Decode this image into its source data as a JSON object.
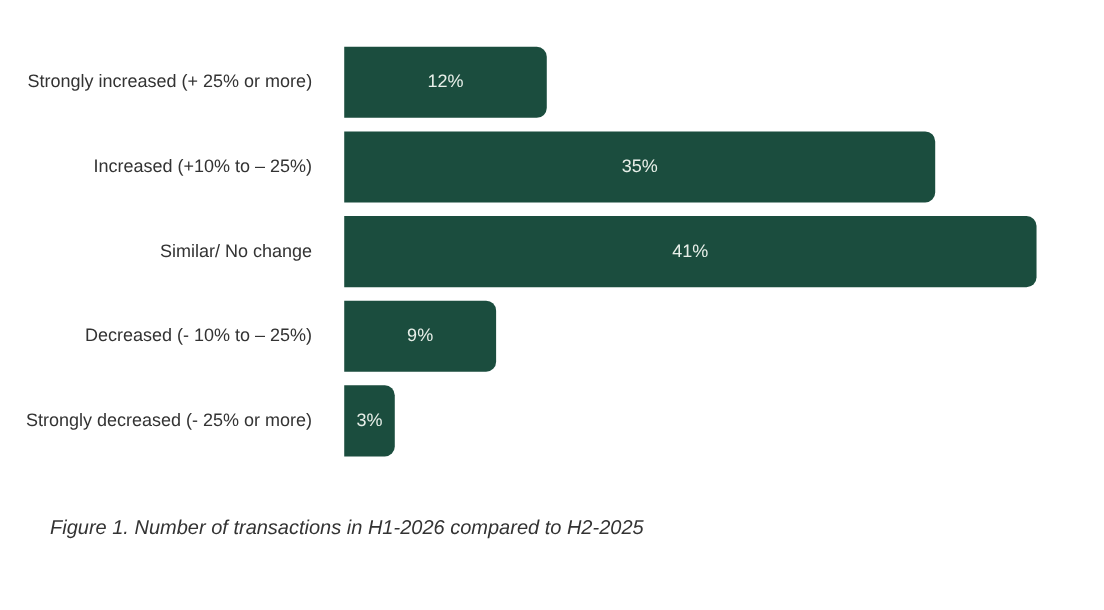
{
  "chart_data": {
    "type": "bar",
    "orientation": "horizontal",
    "categories": [
      "Strongly increased (+ 25% or more)",
      "Increased (+10% to – 25%)",
      "Similar/ No change",
      "Decreased (- 10% to – 25%)",
      "Strongly decreased (- 25% or more)"
    ],
    "values": [
      12,
      35,
      41,
      9,
      3
    ],
    "value_labels": [
      "12%",
      "35%",
      "41%",
      "9%",
      "3%"
    ],
    "color": "#1b4d3e",
    "annotations": [
      "Figure 1. Number of transactions in H1-2026 compared to H2-2025"
    ],
    "grid": false,
    "legend": false
  }
}
